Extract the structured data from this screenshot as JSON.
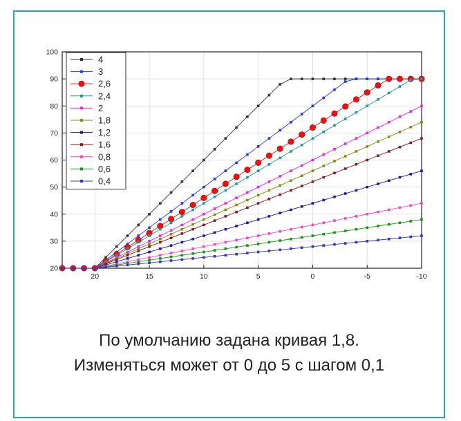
{
  "caption": {
    "line1": "По умолчанию задана кривая 1,8.",
    "line2": "Изменяться может от 0 до 5  с шагом 0,1"
  },
  "chart_data": {
    "type": "line",
    "xlim": [
      23,
      -10
    ],
    "ylim": [
      20,
      100
    ],
    "x_ticks": [
      20,
      15,
      10,
      5,
      0,
      -5,
      -10
    ],
    "y_ticks": [
      20,
      30,
      40,
      50,
      60,
      70,
      80,
      90,
      100
    ],
    "x_tick_labels": [
      "20",
      "15",
      "10",
      "5",
      "0",
      "-5",
      "-10"
    ],
    "y_tick_labels": [
      "20",
      "30",
      "40",
      "50",
      "60",
      "70",
      "80",
      "90",
      "100"
    ],
    "grid": true,
    "legend_position": "top-left",
    "x_points": [
      23,
      22,
      21,
      20,
      19,
      18,
      17,
      16,
      15,
      14,
      13,
      12,
      11,
      10,
      9,
      8,
      7,
      6,
      5,
      4,
      3,
      2,
      1,
      0,
      -1,
      -2,
      -3,
      -4,
      -5,
      -6,
      -7,
      -8,
      -9,
      -10
    ],
    "series": [
      {
        "name": "4",
        "slope": 4.0,
        "color": "#333333"
      },
      {
        "name": "3",
        "slope": 3.0,
        "color": "#2233ff"
      },
      {
        "name": "2,6",
        "slope": 2.6,
        "color": "#ee1111",
        "big": true
      },
      {
        "name": "2,4",
        "slope": 2.4,
        "color": "#1a9a9a"
      },
      {
        "name": "2",
        "slope": 2.0,
        "color": "#ee22ee"
      },
      {
        "name": "1,8",
        "slope": 1.8,
        "color": "#8a8a10"
      },
      {
        "name": "1,2",
        "slope": 1.2,
        "color": "#1a1aa0"
      },
      {
        "name": "1,6",
        "slope": 1.6,
        "color": "#8b1a1a"
      },
      {
        "name": "0,8",
        "slope": 0.8,
        "color": "#ff44bb"
      },
      {
        "name": "0,6",
        "slope": 0.6,
        "color": "#119911"
      },
      {
        "name": "0,4",
        "slope": 0.4,
        "color": "#3333cc"
      }
    ],
    "model": {
      "base_y": 20,
      "break_x": 20,
      "max_y": 90
    }
  }
}
